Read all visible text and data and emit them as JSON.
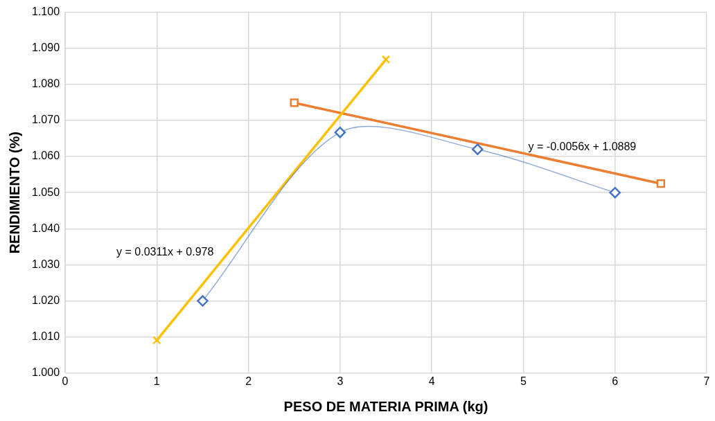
{
  "chart_data": {
    "type": "line",
    "xlabel": "PESO DE MATERIA PRIMA (kg)",
    "ylabel": "RENDIMIENTO (%)",
    "xlim": [
      0,
      7
    ],
    "xticks": [
      0,
      1,
      2,
      3,
      4,
      5,
      6,
      7
    ],
    "ylim": [
      1.0,
      1.1
    ],
    "yticks": [
      {
        "value": 1.0,
        "label": "1.000"
      },
      {
        "value": 1.01,
        "label": "1.010"
      },
      {
        "value": 1.02,
        "label": "1.020"
      },
      {
        "value": 1.03,
        "label": "1.030"
      },
      {
        "value": 1.04,
        "label": "1.040"
      },
      {
        "value": 1.05,
        "label": "1.050"
      },
      {
        "value": 1.06,
        "label": "1.060"
      },
      {
        "value": 1.07,
        "label": "1.070"
      },
      {
        "value": 1.08,
        "label": "1.080"
      },
      {
        "value": 1.09,
        "label": "1.090"
      },
      {
        "value": 1.1,
        "label": "1.100"
      }
    ],
    "grid": true,
    "series": [
      {
        "color": "#4472c4",
        "marker": "diamond",
        "x": [
          1.5,
          3,
          4.5,
          6
        ],
        "values": [
          1.02,
          1.0667,
          1.062,
          1.05
        ]
      },
      {
        "color": "#ffc000",
        "marker": "cross",
        "x": [
          1,
          3.5
        ],
        "values": [
          1.0091,
          1.0869
        ]
      },
      {
        "color": "#ed7d31",
        "marker": "square",
        "x": [
          2.5,
          6.5
        ],
        "values": [
          1.0749,
          1.0525
        ]
      }
    ],
    "annotations": [
      "y = 0.0311x + 0.978",
      "y = -0.0056x + 1.0889"
    ]
  }
}
